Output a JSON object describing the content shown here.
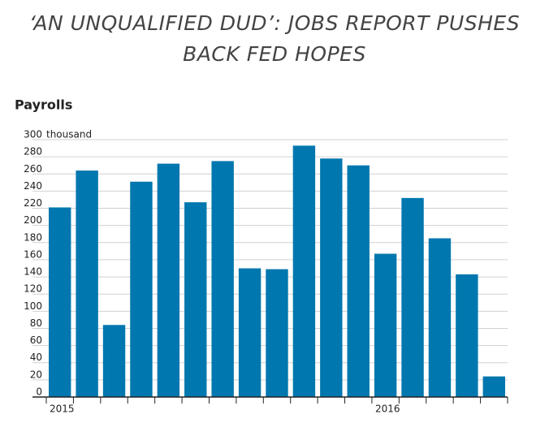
{
  "chart_data": {
    "type": "bar",
    "title_lines": [
      "‘AN UNQUALIFIED DUD’: JOBS REPORT PUSHES",
      "BACK FED HOPES"
    ],
    "subtitle": "Payrolls",
    "unit": "thousand",
    "categories": [
      "2015",
      null,
      null,
      null,
      null,
      null,
      null,
      null,
      null,
      null,
      null,
      null,
      "2016",
      null,
      null,
      null,
      null
    ],
    "values": [
      221,
      264,
      84,
      251,
      272,
      227,
      275,
      150,
      149,
      293,
      278,
      270,
      167,
      232,
      185,
      143,
      24
    ],
    "color": "#0077ae",
    "ylim": [
      0,
      300
    ],
    "yticks": [
      0,
      20,
      40,
      60,
      80,
      100,
      120,
      140,
      160,
      180,
      200,
      220,
      240,
      260,
      280,
      300
    ],
    "grid": true
  }
}
